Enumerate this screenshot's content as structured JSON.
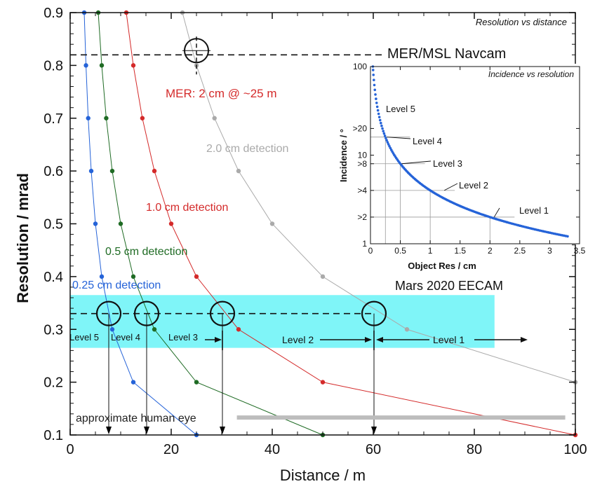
{
  "chart_data": [
    {
      "type": "line",
      "title": "Resolution vs distance",
      "xlabel": "Distance / m",
      "ylabel": "Resolution / mrad",
      "xlim": [
        0,
        100
      ],
      "ylim": [
        0.1,
        0.9
      ],
      "xticks": [
        "0",
        "20",
        "40",
        "60",
        "80",
        "100"
      ],
      "yticks": [
        "0.1",
        "0.2",
        "0.3",
        "0.4",
        "0.5",
        "0.6",
        "0.7",
        "0.8",
        "0.9"
      ],
      "series": [
        {
          "name": "0.25 cm detection",
          "color": "#2563d8",
          "x": [
            2.78,
            3.13,
            3.57,
            4.17,
            5.0,
            6.25,
            8.33,
            12.5,
            25.0
          ],
          "y": [
            0.9,
            0.8,
            0.7,
            0.6,
            0.5,
            0.4,
            0.3,
            0.2,
            0.1
          ]
        },
        {
          "name": "0.5 cm detection",
          "color": "#1f6b24",
          "x": [
            5.56,
            6.25,
            7.14,
            8.33,
            10.0,
            12.5,
            16.67,
            25.0,
            50.0
          ],
          "y": [
            0.9,
            0.8,
            0.7,
            0.6,
            0.5,
            0.4,
            0.3,
            0.2,
            0.1
          ]
        },
        {
          "name": "1.0 cm detection",
          "color": "#d42a2a",
          "x": [
            11.11,
            12.5,
            14.29,
            16.67,
            20.0,
            25.0,
            33.33,
            50.0,
            100.0
          ],
          "y": [
            0.9,
            0.8,
            0.7,
            0.6,
            0.5,
            0.4,
            0.3,
            0.2,
            0.1
          ]
        },
        {
          "name": "2.0 cm detection",
          "color": "#aaaaaa",
          "x": [
            22.22,
            25.0,
            28.57,
            33.33,
            40.0,
            50.0,
            66.67,
            100.0
          ],
          "y": [
            0.9,
            0.8,
            0.7,
            0.6,
            0.5,
            0.4,
            0.3,
            0.2
          ]
        }
      ],
      "annotations": {
        "navcam_label": "MER/MSL Navcam",
        "navcam_resolution": 0.82,
        "mer_note": "MER: 2 cm @ ~25 m",
        "eecam_label": "Mars 2020 EECAM",
        "eecam_resolution": 0.33,
        "eecam_band": [
          0.265,
          0.365
        ],
        "eecam_band_max_distance": 84,
        "eecam_band_color": "#7ff5f8",
        "level_boundaries": [
          7.5,
          15,
          30,
          60
        ],
        "levels": [
          "Level 5",
          "Level 4",
          "Level 3",
          "Level 2",
          "Level 1"
        ],
        "human_eye_label": "approximate human eye",
        "human_eye_resolution": 0.133,
        "human_eye_range": [
          33,
          98
        ]
      }
    },
    {
      "type": "scatter",
      "title": "Incidence vs resolution",
      "xlabel": "Object Res / cm",
      "ylabel": "Incidence / °",
      "xscale": "linear",
      "yscale": "log",
      "xlim": [
        0,
        3.5
      ],
      "ylim": [
        1,
        100
      ],
      "xticks": [
        "0",
        "0.5",
        "1",
        "1.5",
        "2",
        "2.5",
        "3",
        "3.5"
      ],
      "yticks": [
        {
          "value": 100,
          "label": "100"
        },
        {
          "value": 20,
          "label": ">20"
        },
        {
          "value": 10,
          "label": "10"
        },
        {
          "value": 8,
          "label": ">8"
        },
        {
          "value": 4,
          "label": ">4"
        },
        {
          "value": 2,
          "label": ">2"
        },
        {
          "value": 1,
          "label": "1"
        }
      ],
      "color": "#2563d8",
      "curve": "incidence = 4 / object_res",
      "x_range": [
        0.04,
        3.3
      ],
      "levels": [
        {
          "label": "Level 5",
          "res": 0.125,
          "incidence": 32
        },
        {
          "label": "Level 4",
          "res": 0.25,
          "incidence": 16
        },
        {
          "label": "Level 3",
          "res": 0.5,
          "incidence": 8
        },
        {
          "label": "Level 2",
          "res": 1.0,
          "incidence": 4
        },
        {
          "label": "Level 1",
          "res": 2.0,
          "incidence": 2
        }
      ]
    }
  ]
}
